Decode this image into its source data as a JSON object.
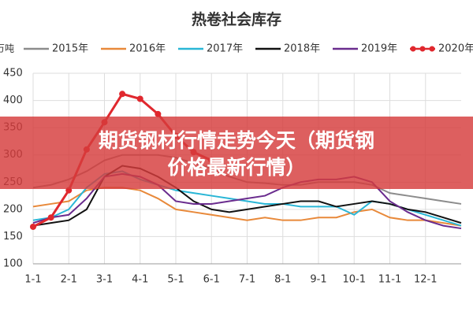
{
  "chart_data": {
    "type": "line",
    "title": "热卷社会库存",
    "y_label": "万吨",
    "x": [
      0,
      0.5,
      1,
      1.5,
      2,
      2.5,
      3,
      3.5,
      4,
      4.5,
      5,
      5.5,
      6,
      6.5,
      7,
      7.5,
      8,
      8.5,
      9,
      9.5,
      10,
      10.5,
      11,
      11.5,
      12
    ],
    "xlim": [
      0,
      12
    ],
    "xticks": [
      {
        "value": 0,
        "label": "1-1"
      },
      {
        "value": 1,
        "label": "2-1"
      },
      {
        "value": 2,
        "label": "3-1"
      },
      {
        "value": 3,
        "label": "4-1"
      },
      {
        "value": 4,
        "label": "5-1"
      },
      {
        "value": 5,
        "label": "6-1"
      },
      {
        "value": 6,
        "label": "7-1"
      },
      {
        "value": 7,
        "label": "8-1"
      },
      {
        "value": 8,
        "label": "9-1"
      },
      {
        "value": 9,
        "label": "10-1"
      },
      {
        "value": 10,
        "label": "11-1"
      },
      {
        "value": 11,
        "label": "12-1"
      }
    ],
    "ylim": [
      100,
      450
    ],
    "yticks": [
      100,
      150,
      200,
      250,
      300,
      350,
      400,
      450
    ],
    "grid": true,
    "series": [
      {
        "name": "2015年",
        "color": "#8c8c8c",
        "values": [
          240,
          245,
          255,
          270,
          290,
          300,
          300,
          300,
          295,
          285,
          275,
          260,
          250,
          248,
          245,
          245,
          250,
          250,
          250,
          245,
          230,
          225,
          220,
          215,
          210
        ]
      },
      {
        "name": "2016年",
        "color": "#e8893a",
        "values": [
          205,
          210,
          215,
          235,
          240,
          240,
          235,
          220,
          200,
          195,
          190,
          185,
          180,
          185,
          180,
          180,
          185,
          185,
          195,
          200,
          185,
          180,
          180,
          175,
          170
        ]
      },
      {
        "name": "2017年",
        "color": "#29b6d6",
        "values": [
          180,
          185,
          200,
          240,
          265,
          270,
          255,
          245,
          235,
          230,
          225,
          220,
          215,
          210,
          210,
          205,
          205,
          205,
          190,
          215,
          210,
          200,
          190,
          180,
          170
        ]
      },
      {
        "name": "2018年",
        "color": "#111111",
        "values": [
          170,
          175,
          180,
          200,
          260,
          280,
          275,
          260,
          240,
          215,
          200,
          195,
          200,
          205,
          210,
          215,
          215,
          205,
          210,
          215,
          210,
          200,
          195,
          185,
          175
        ]
      },
      {
        "name": "2019年",
        "color": "#6a2c8e",
        "values": [
          175,
          185,
          190,
          220,
          260,
          265,
          260,
          245,
          215,
          210,
          210,
          215,
          220,
          225,
          240,
          250,
          255,
          255,
          260,
          250,
          215,
          195,
          180,
          170,
          165
        ]
      },
      {
        "name": "2020年",
        "color": "#e0282e",
        "markers": true,
        "values": [
          168,
          185,
          235,
          310,
          360,
          412,
          403,
          375,
          335,
          305,
          290,
          null,
          null,
          null,
          null,
          null,
          null,
          null,
          null,
          null,
          null,
          null,
          null,
          null,
          null
        ]
      }
    ]
  },
  "banner": {
    "lines": [
      "期货钢材行情走势今天（期货钢",
      "价格最新行情）"
    ]
  }
}
